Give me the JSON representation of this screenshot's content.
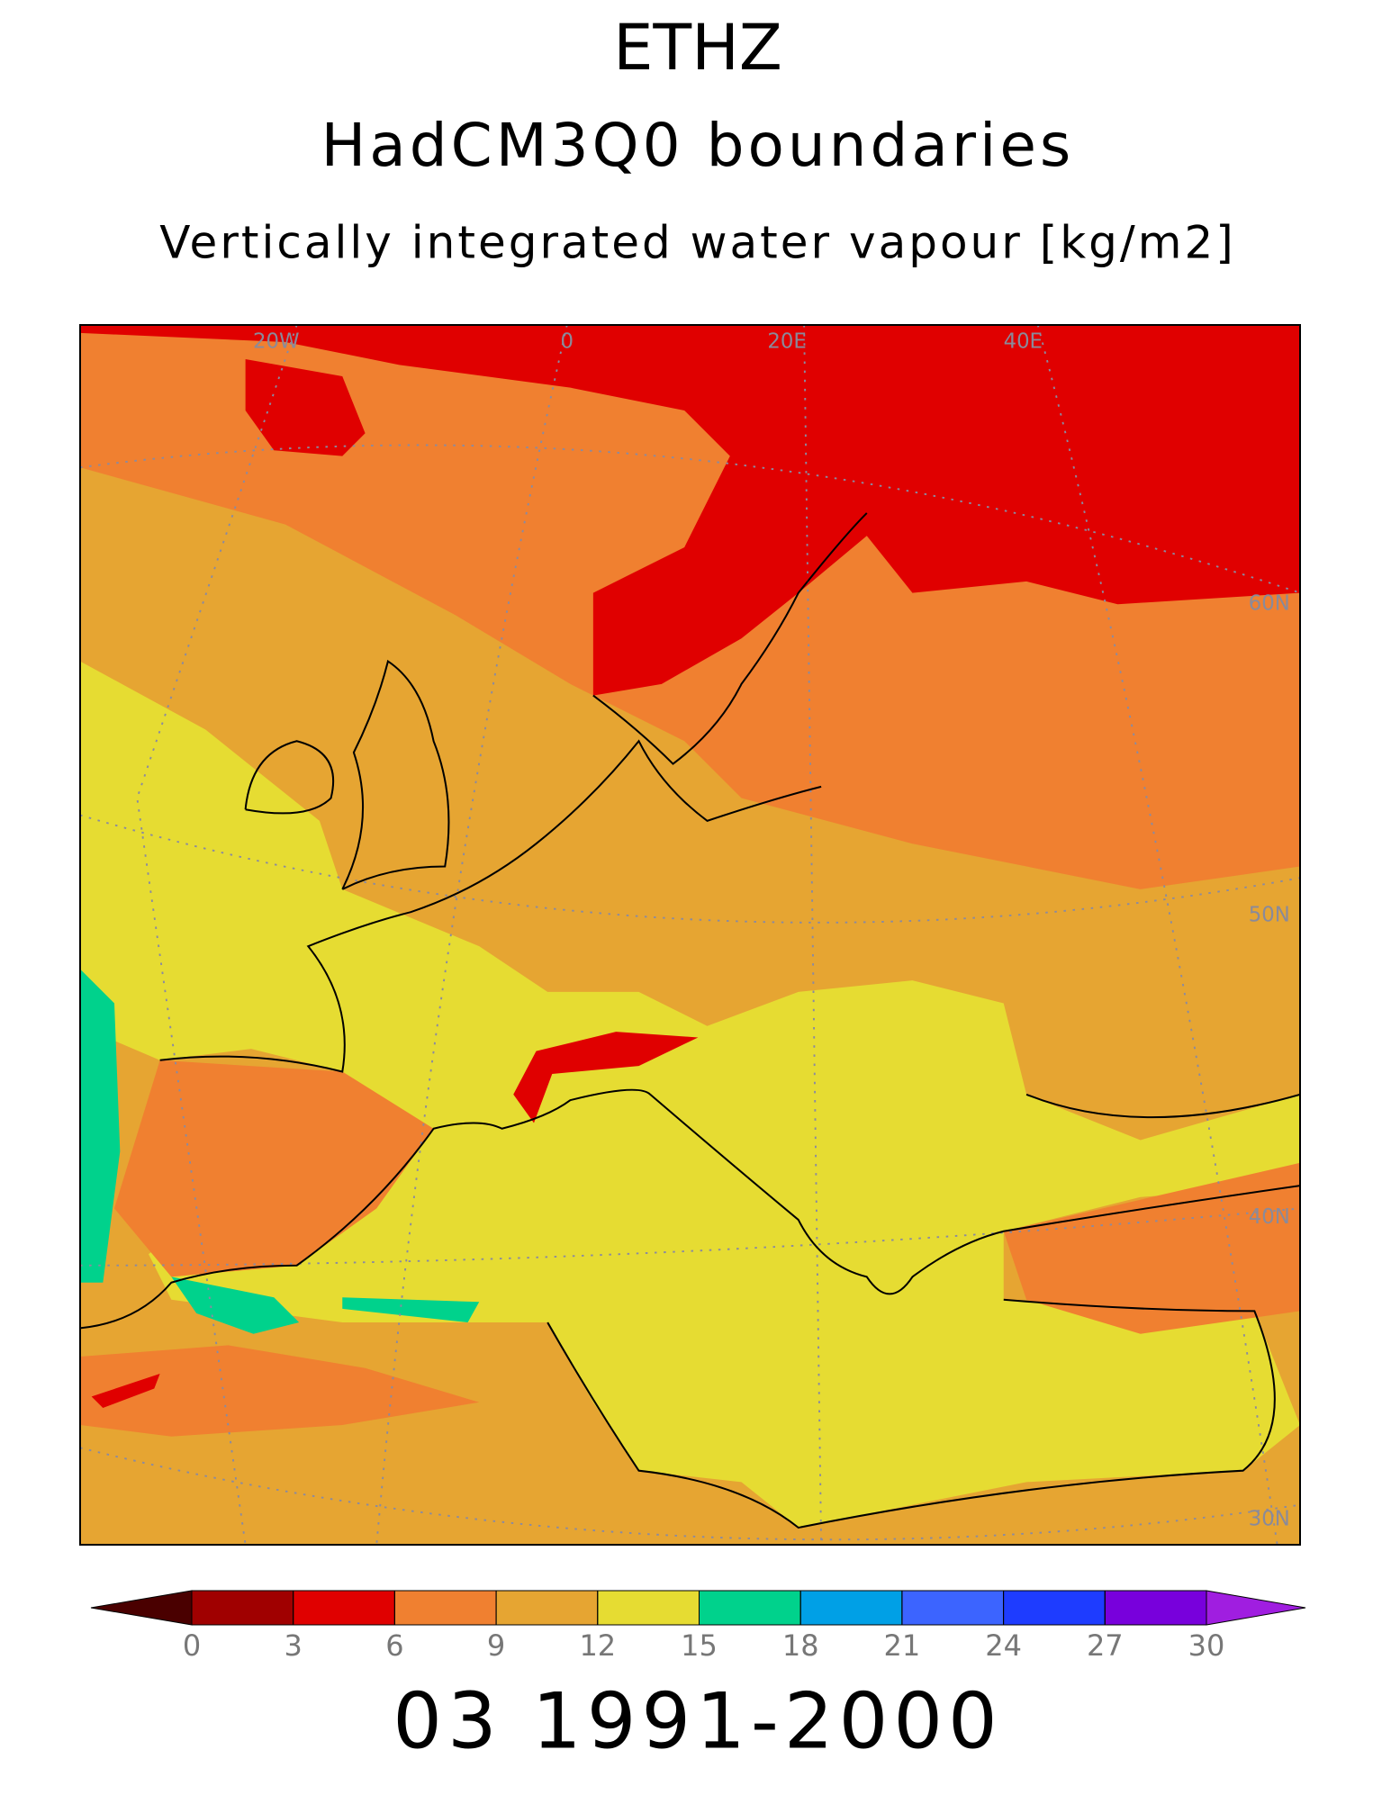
{
  "header": {
    "title": "ETHZ",
    "subtitle": "HadCM3Q0 boundaries",
    "variable": "Vertically integrated water vapour [kg/m2]"
  },
  "map": {
    "lon_labels": [
      "20W",
      "0",
      "20E",
      "40E"
    ],
    "lat_labels": [
      "60N",
      "50N",
      "40N",
      "30N"
    ]
  },
  "colorbar": {
    "ticks": [
      0,
      3,
      6,
      9,
      12,
      15,
      18,
      21,
      24,
      27,
      30
    ],
    "colors": [
      "#4a0000",
      "#a00000",
      "#e00000",
      "#f08030",
      "#e6a532",
      "#e6dc32",
      "#00d28c",
      "#00a0e6",
      "#3c64ff",
      "#1e3cff",
      "#7800dc",
      "#a01ee0"
    ]
  },
  "footer": {
    "period": "03 1991-2000"
  }
}
